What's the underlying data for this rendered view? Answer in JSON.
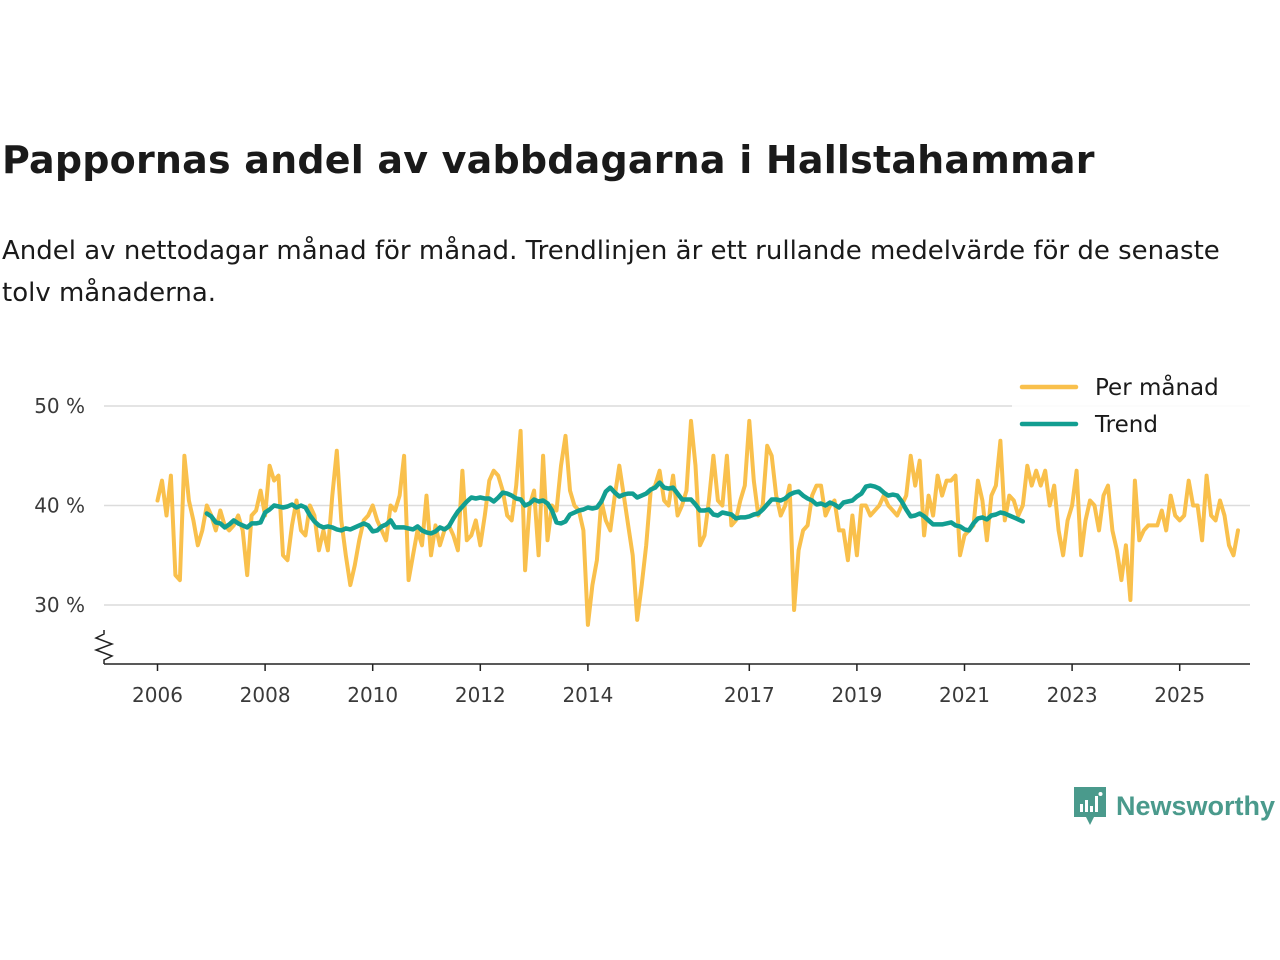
{
  "title": "Pappornas andel av vabbdagarna i Hallstahammar",
  "subtitle": "Andel av nettodagar månad för månad. Trendlinjen är ett rullande medelvärde för de senaste tolv månaderna.",
  "brand": {
    "name": "Newsworthy",
    "color": "#4a9a8c"
  },
  "chart_data": {
    "type": "line",
    "title": "Pappornas andel av vabbdagarna i Hallstahammar",
    "xlabel": "",
    "ylabel": "",
    "ylim": [
      24,
      51
    ],
    "xlim": [
      2005.5,
      2026.3
    ],
    "y_ticks": [
      {
        "value": 30,
        "label": "30 %"
      },
      {
        "value": 40,
        "label": "40 %"
      },
      {
        "value": 50,
        "label": "50 %"
      }
    ],
    "x_ticks": [
      {
        "value": 2006,
        "label": "2006"
      },
      {
        "value": 2008,
        "label": "2008"
      },
      {
        "value": 2010,
        "label": "2010"
      },
      {
        "value": 2012,
        "label": "2012"
      },
      {
        "value": 2014,
        "label": "2014"
      },
      {
        "value": 2017,
        "label": "2017"
      },
      {
        "value": 2019,
        "label": "2019"
      },
      {
        "value": 2021,
        "label": "2021"
      },
      {
        "value": 2023,
        "label": "2023"
      },
      {
        "value": 2025,
        "label": "2025"
      }
    ],
    "grid": true,
    "legend_position": "top-right",
    "series": [
      {
        "name": "Per månad",
        "color": "#f9c04c",
        "x_start": 2006.0,
        "step": 0.083333,
        "values": [
          40.5,
          42.5,
          39,
          43,
          33,
          32.5,
          45,
          40.5,
          38.5,
          36,
          37.5,
          40,
          39,
          37.5,
          39.5,
          38,
          37.5,
          38,
          39,
          37.5,
          33,
          39,
          39.5,
          41.5,
          39,
          44,
          42.5,
          43,
          35,
          34.5,
          38,
          40.5,
          37.5,
          37,
          40,
          39,
          35.5,
          37.5,
          35.5,
          41,
          45.5,
          38.5,
          35,
          32,
          34,
          36.5,
          38.5,
          39,
          40,
          38.5,
          37.5,
          36.5,
          40,
          39.5,
          41,
          45,
          32.5,
          35,
          37.5,
          36,
          41,
          35,
          38,
          36,
          37.5,
          38,
          37,
          35.5,
          43.5,
          36.5,
          37,
          38.5,
          36,
          39,
          42.5,
          43.5,
          43,
          41.5,
          39,
          38.5,
          42,
          47.5,
          33.5,
          40,
          41.5,
          35,
          45,
          36.5,
          40,
          39.5,
          44,
          47,
          41.5,
          40,
          39.5,
          37.5,
          28,
          32,
          34.5,
          40.5,
          38.5,
          37.5,
          41,
          44,
          41,
          38,
          35,
          28.5,
          32,
          36,
          41.5,
          42,
          43.5,
          40.5,
          40,
          43,
          39,
          40,
          41.5,
          48.5,
          44,
          36,
          37,
          40.5,
          45,
          40.5,
          40,
          45,
          38,
          38.5,
          40.5,
          42,
          48.5,
          42.5,
          39,
          40,
          46,
          45,
          41,
          39,
          40,
          42,
          29.5,
          35.5,
          37.5,
          38,
          41,
          42,
          42,
          39,
          40,
          40.5,
          37.5,
          37.5,
          34.5,
          39,
          35,
          40,
          40,
          39,
          39.5,
          40,
          41,
          40,
          39.5,
          39,
          40,
          41,
          45,
          42,
          44.5,
          37,
          41,
          39,
          43,
          41,
          42.5,
          42.5,
          43,
          35,
          37,
          37.5,
          38,
          42.5,
          40.5,
          36.5,
          41,
          42,
          46.5,
          38.5,
          41,
          40.5,
          39,
          40,
          44,
          42,
          43.5,
          42,
          43.5,
          40,
          42,
          37.5,
          35,
          38.5,
          40,
          43.5,
          35,
          38.5,
          40.5,
          40,
          37.5,
          41,
          42,
          37.5,
          35.5,
          32.5,
          36,
          30.5,
          42.5,
          36.5,
          37.5,
          38,
          38,
          38,
          39.5,
          37.5,
          41,
          39,
          38.5,
          39,
          42.5,
          40,
          40,
          36.5,
          43,
          39,
          38.5,
          40.5,
          39,
          36,
          35,
          37.5
        ]
      },
      {
        "name": "Trend",
        "color": "#129e91",
        "x_start": 2006.917,
        "step": 0.083333,
        "values": [
          39.2,
          38.9,
          38.3,
          38.2,
          37.8,
          38.1,
          38.5,
          38.2,
          38,
          37.8,
          38.2,
          38.2,
          38.3,
          39.3,
          39.6,
          40,
          39.9,
          39.8,
          39.9,
          40.1,
          39.8,
          40,
          39.8,
          39,
          38.4,
          38,
          37.8,
          37.9,
          37.8,
          37.6,
          37.5,
          37.7,
          37.6,
          37.8,
          38,
          38.2,
          38,
          37.4,
          37.5,
          37.9,
          38.1,
          38.5,
          37.8,
          37.8,
          37.8,
          37.7,
          37.6,
          37.9,
          37.5,
          37.3,
          37.2,
          37.4,
          37.8,
          37.6,
          37.9,
          38.7,
          39.4,
          39.9,
          40.4,
          40.8,
          40.7,
          40.8,
          40.7,
          40.7,
          40.4,
          40.8,
          41.3,
          41.2,
          41,
          40.7,
          40.6,
          40,
          40.2,
          40.6,
          40.4,
          40.5,
          40.2,
          39.5,
          38.3,
          38.2,
          38.4,
          39.1,
          39.3,
          39.5,
          39.6,
          39.8,
          39.7,
          39.8,
          40.4,
          41.4,
          41.8,
          41.3,
          40.9,
          41.1,
          41.2,
          41.2,
          40.8,
          41,
          41.2,
          41.6,
          41.8,
          42.3,
          41.8,
          41.7,
          41.8,
          41.2,
          40.6,
          40.6,
          40.6,
          40.1,
          39.5,
          39.5,
          39.6,
          39.1,
          39,
          39.3,
          39.2,
          39.1,
          38.7,
          38.8,
          38.8,
          38.9,
          39.1,
          39.2,
          39.6,
          40.1,
          40.6,
          40.6,
          40.5,
          40.7,
          41.1,
          41.3,
          41.4,
          41,
          40.7,
          40.5,
          40.1,
          40.2,
          40,
          40.3,
          40.1,
          39.8,
          40.3,
          40.4,
          40.5,
          40.9,
          41.2,
          41.9,
          42,
          41.9,
          41.7,
          41.3,
          41,
          41.1,
          41,
          40.4,
          39.6,
          38.9,
          39,
          39.2,
          38.9,
          38.5,
          38.1,
          38.1,
          38.1,
          38.2,
          38.3,
          38,
          37.9,
          37.6,
          37.5,
          38.2,
          38.7,
          38.8,
          38.6,
          39,
          39.1,
          39.3,
          39.2,
          39,
          38.8,
          38.6,
          38.4
        ]
      }
    ]
  }
}
